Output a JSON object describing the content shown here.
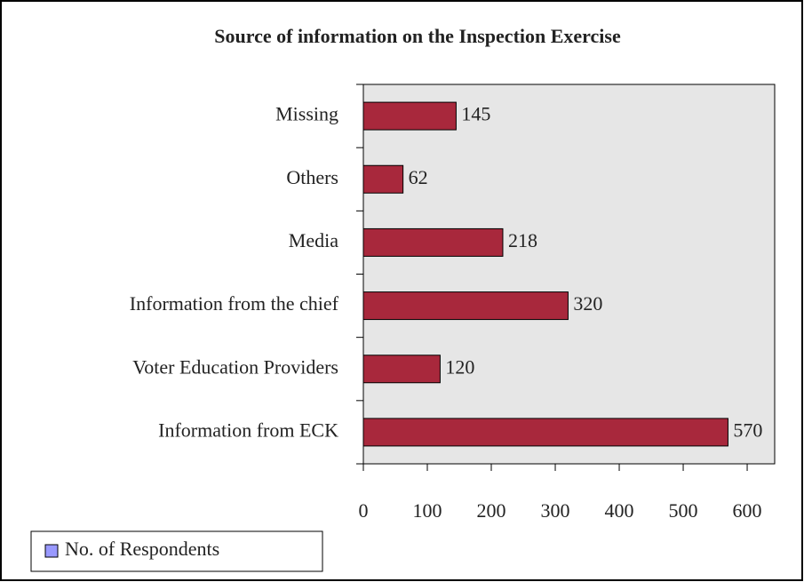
{
  "chart_data": {
    "type": "barh",
    "title": "Source of information on the Inspection Exercise",
    "categories": [
      "Missing",
      "Others",
      "Media",
      "Information from the chief",
      "Voter Education Providers",
      "Information from ECK"
    ],
    "series": [
      {
        "name": "No. of Respondents",
        "color": "#a8283c",
        "values": [
          145,
          62,
          218,
          320,
          120,
          570
        ]
      }
    ],
    "legend_color": "#9999ff",
    "xlim": [
      0,
      643
    ],
    "xticks": [
      0,
      100,
      200,
      300,
      400,
      500,
      600
    ],
    "plot_background": "#e6e6e6",
    "legend": "bottom-left"
  }
}
